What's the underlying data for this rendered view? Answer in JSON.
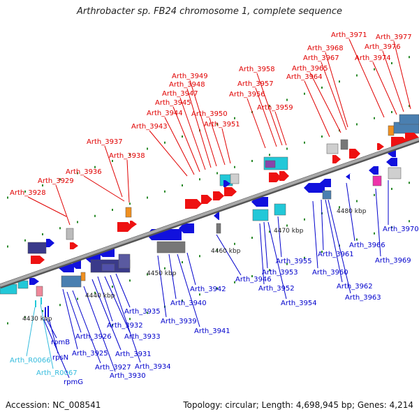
{
  "title": "Arthrobacter sp. FB24 chromosome 1, complete sequence",
  "footer": {
    "accession": "Accession: NC_008541",
    "summary": "Topology: circular; Length: 4,698,945 bp; Genes: 4,214"
  },
  "scale_labels": [
    "4430 kbp",
    "4440 kbp",
    "4450 kbp",
    "4460 kbp",
    "4470 kbp",
    "4480 kbp"
  ],
  "colors": {
    "top_strand_label": "#e00000",
    "bottom_strand_label": "#0000cc",
    "rna_label": "#33bbdd",
    "backbone": "#8a8a8a"
  },
  "labels_top": [
    "Arth_3928",
    "Arth_3929",
    "Arth_3936",
    "Arth_3937",
    "Arth_3938",
    "Arth_3943",
    "Arth_3944",
    "Arth_3945",
    "Arth_3947",
    "Arth_3948",
    "Arth_3949",
    "Arth_3950",
    "Arth_3951",
    "Arth_3956",
    "Arth_3957",
    "Arth_3958",
    "Arth_3959",
    "Arth_3964",
    "Arth_3965",
    "Arth_3967",
    "Arth_3968",
    "Arth_3971",
    "Arth_3974",
    "Arth_3976",
    "Arth_3977"
  ],
  "labels_bottom": [
    "Arth_3926",
    "Arth_3925",
    "Arth_3927",
    "Arth_3930",
    "Arth_3931",
    "Arth_3932",
    "Arth_3933",
    "Arth_3934",
    "Arth_3935",
    "Arth_3939",
    "Arth_3940",
    "Arth_3941",
    "Arth_3942",
    "Arth_3946",
    "Arth_3952",
    "Arth_3953",
    "Arth_3954",
    "Arth_3955",
    "Arth_3960",
    "Arth_3961",
    "Arth_3962",
    "Arth_3963",
    "Arth_3966",
    "Arth_3969",
    "Arth_3970",
    "rpmB",
    "rpsN",
    "rpmG"
  ],
  "labels_rna": [
    "Arth_R0066",
    "Arth_R0067"
  ]
}
